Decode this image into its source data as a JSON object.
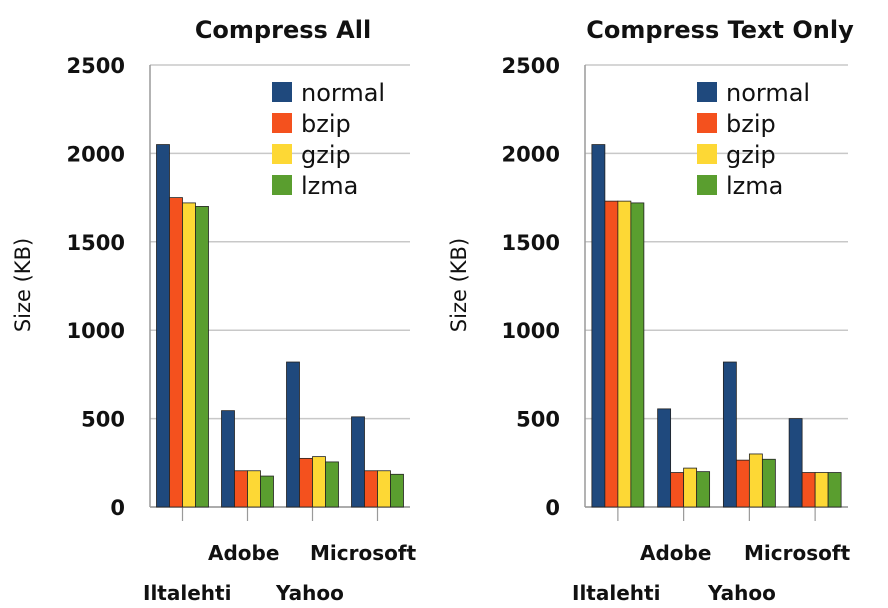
{
  "chart_data": [
    {
      "type": "bar",
      "title": "Compress All",
      "ylabel": "Size (KB)",
      "xlabel": "",
      "ylim": [
        0,
        2500
      ],
      "yticks": [
        "0",
        "500",
        "1000",
        "1500",
        "2000",
        "2500"
      ],
      "grid": true,
      "legend_position": "top-right",
      "categories": [
        "Iltalehti",
        "Adobe",
        "Yahoo",
        "Microsoft"
      ],
      "series": [
        {
          "name": "normal",
          "color": "#1f497d",
          "values": [
            2050,
            545,
            820,
            510
          ]
        },
        {
          "name": "bzip",
          "color": "#f4511e",
          "values": [
            1750,
            205,
            275,
            205
          ]
        },
        {
          "name": "gzip",
          "color": "#fdd835",
          "values": [
            1720,
            205,
            285,
            205
          ]
        },
        {
          "name": "lzma",
          "color": "#5a9e2f",
          "values": [
            1700,
            175,
            255,
            185
          ]
        }
      ]
    },
    {
      "type": "bar",
      "title": "Compress Text Only",
      "ylabel": "Size (KB)",
      "xlabel": "",
      "ylim": [
        0,
        2500
      ],
      "yticks": [
        "0",
        "500",
        "1000",
        "1500",
        "2000",
        "2500"
      ],
      "grid": true,
      "legend_position": "top-right",
      "categories": [
        "Iltalehti",
        "Adobe",
        "Yahoo",
        "Microsoft"
      ],
      "series": [
        {
          "name": "normal",
          "color": "#1f497d",
          "values": [
            2050,
            555,
            820,
            500
          ]
        },
        {
          "name": "bzip",
          "color": "#f4511e",
          "values": [
            1730,
            195,
            265,
            195
          ]
        },
        {
          "name": "gzip",
          "color": "#fdd835",
          "values": [
            1730,
            220,
            300,
            195
          ]
        },
        {
          "name": "lzma",
          "color": "#5a9e2f",
          "values": [
            1720,
            200,
            270,
            195
          ]
        }
      ]
    }
  ]
}
